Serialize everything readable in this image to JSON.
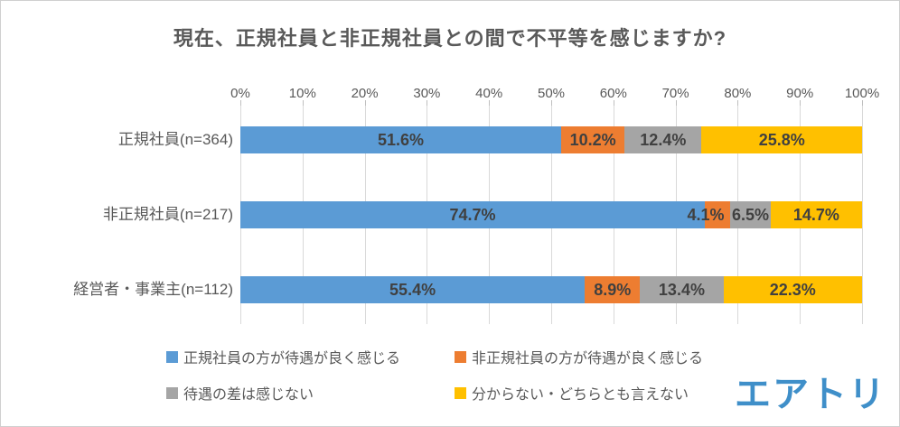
{
  "chart_data": {
    "type": "bar",
    "stacked": true,
    "orientation": "horizontal",
    "title": "現在、正規社員と非正規社員との間で不平等を感じますか?",
    "categories": [
      "正規社員(n=364)",
      "非正規社員(n=217)",
      "経営者・事業主(n=112)"
    ],
    "series": [
      {
        "name": "正規社員の方が待遇が良く感じる",
        "color": "#5B9BD5",
        "values": [
          51.6,
          74.7,
          55.4
        ]
      },
      {
        "name": "非正規社員の方が待遇が良く感じる",
        "color": "#ED7D31",
        "values": [
          10.2,
          4.1,
          8.9
        ]
      },
      {
        "name": "待遇の差は感じない",
        "color": "#A5A5A5",
        "values": [
          12.4,
          6.5,
          13.4
        ]
      },
      {
        "name": "分からない・どちらとも言えない",
        "color": "#FFC000",
        "values": [
          25.8,
          14.7,
          22.3
        ]
      }
    ],
    "x_ticks": [
      "0%",
      "10%",
      "20%",
      "30%",
      "40%",
      "50%",
      "60%",
      "70%",
      "80%",
      "90%",
      "100%"
    ],
    "xlim": [
      0,
      100
    ],
    "value_suffix": "%",
    "grid": true,
    "legend_position": "bottom"
  },
  "logo": {
    "text": "エアトリ",
    "color": "#3F8FC9"
  }
}
